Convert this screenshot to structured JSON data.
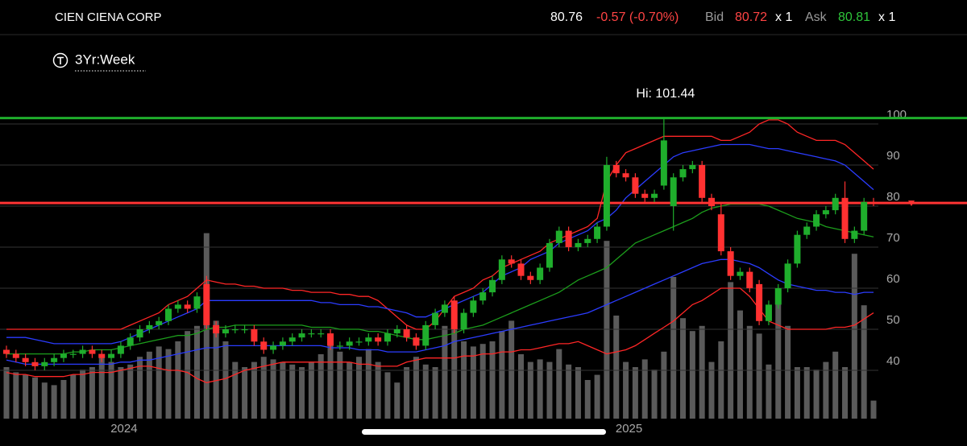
{
  "header": {
    "symbol": "CIEN CIENA CORP",
    "last": 80.76,
    "change": "-0.57 (-0.70%)",
    "bid_label": "Bid",
    "bid": 80.72,
    "bid_size": "x 1",
    "ask_label": "Ask",
    "ask": 80.81,
    "ask_size": "x 1",
    "range": "3Yr:Week"
  },
  "chart_data": {
    "type": "candlestick",
    "annotation": "Hi: 101.44",
    "categories": [
      null,
      null,
      null,
      null,
      null,
      null,
      null,
      null,
      null,
      null,
      null,
      null,
      "2024",
      null,
      null,
      null,
      null,
      null,
      null,
      null,
      null,
      null,
      null,
      null,
      null,
      null,
      null,
      null,
      null,
      null,
      null,
      null,
      null,
      null,
      null,
      null,
      null,
      null,
      null,
      null,
      null,
      null,
      null,
      null,
      null,
      null,
      null,
      null,
      null,
      null,
      null,
      null,
      null,
      null,
      null,
      null,
      null,
      null,
      null,
      null,
      null,
      null,
      null,
      null,
      null,
      "2025",
      null,
      null,
      null,
      null,
      null,
      null,
      null,
      null,
      null,
      null,
      null,
      null,
      null,
      null,
      null,
      null,
      null,
      null,
      null,
      null,
      null,
      null,
      null,
      null,
      null,
      null
    ],
    "open": [
      45,
      44,
      43,
      42,
      41,
      42,
      43,
      44,
      44,
      45,
      44,
      43,
      44,
      46,
      48,
      50,
      51,
      52,
      55,
      56,
      55,
      61,
      51,
      49,
      50,
      50,
      50,
      47,
      45,
      46,
      47,
      48,
      49,
      49,
      49,
      46,
      46,
      47,
      47,
      48,
      47,
      49,
      50,
      48,
      46,
      51,
      54,
      57,
      50,
      54,
      57,
      59,
      62,
      67,
      66,
      63,
      62,
      65,
      71,
      74,
      70,
      71,
      72,
      75,
      90,
      88,
      87,
      83,
      82,
      85,
      80,
      87,
      89,
      90,
      82,
      78,
      69,
      63,
      64,
      61,
      52,
      56,
      60,
      66,
      73,
      75,
      78,
      79,
      82,
      72,
      74,
      81
    ],
    "high": [
      46,
      45,
      44,
      43,
      43,
      44,
      45,
      45,
      46,
      46,
      45,
      45,
      47,
      49,
      51,
      52,
      53,
      56,
      57,
      57,
      59,
      63,
      52,
      51,
      51,
      51,
      51,
      48,
      47,
      48,
      49,
      50,
      50,
      50,
      50,
      47,
      48,
      48,
      49,
      49,
      50,
      51,
      51,
      49,
      52,
      55,
      57,
      58,
      55,
      58,
      60,
      63,
      68,
      68,
      67,
      64,
      66,
      72,
      75,
      75,
      72,
      73,
      76,
      92,
      91,
      89,
      88,
      84,
      84,
      101.44,
      88,
      90,
      91,
      91,
      83,
      81,
      70,
      65,
      65,
      62,
      57,
      61,
      67,
      74,
      76,
      79,
      80,
      83,
      86,
      75,
      82,
      82
    ],
    "low": [
      43,
      42,
      41,
      40,
      40,
      41,
      42,
      43,
      43,
      43,
      42,
      42,
      43,
      45,
      47,
      49,
      50,
      51,
      54,
      54,
      54,
      50,
      48,
      48,
      49,
      49,
      46,
      44,
      44,
      45,
      46,
      47,
      48,
      48,
      45,
      45,
      45,
      46,
      46,
      46,
      46,
      48,
      47,
      45,
      45,
      50,
      53,
      49,
      49,
      53,
      56,
      58,
      61,
      65,
      62,
      61,
      61,
      64,
      70,
      69,
      69,
      70,
      71,
      74,
      87,
      86,
      82,
      81,
      81,
      84,
      74,
      86,
      88,
      81,
      79,
      68,
      62,
      62,
      59,
      51,
      51,
      55,
      59,
      65,
      72,
      74,
      77,
      78,
      71,
      71,
      73,
      80
    ],
    "close": [
      44,
      43,
      42,
      41,
      42,
      43,
      44,
      44,
      45,
      44,
      43,
      44,
      46,
      48,
      50,
      51,
      52,
      55,
      56,
      55,
      58,
      51,
      49,
      50,
      50,
      50,
      47,
      45,
      46,
      47,
      48,
      49,
      49,
      49,
      46,
      46,
      47,
      47,
      48,
      47,
      49,
      50,
      48,
      46,
      51,
      54,
      56,
      50,
      54,
      57,
      59,
      62,
      67,
      66,
      63,
      62,
      65,
      71,
      74,
      70,
      71,
      72,
      75,
      90,
      88,
      87,
      83,
      82,
      83,
      96,
      87,
      89,
      90,
      82,
      80,
      69,
      63,
      64,
      60,
      52,
      56,
      60,
      66,
      73,
      75,
      78,
      79,
      82,
      72,
      74,
      81,
      80.76
    ],
    "up_color": "#1fae2c",
    "down_color": "#ff3131",
    "volume": [
      20,
      18,
      17,
      16,
      14,
      13,
      15,
      17,
      19,
      20,
      25,
      22,
      20,
      21,
      24,
      26,
      28,
      27,
      30,
      34,
      36,
      72,
      38,
      30,
      22,
      20,
      22,
      24,
      23,
      22,
      21,
      20,
      22,
      25,
      30,
      26,
      22,
      24,
      27,
      22,
      18,
      14,
      20,
      24,
      21,
      20,
      36,
      40,
      30,
      28,
      29,
      30,
      34,
      38,
      25,
      22,
      23,
      22,
      27,
      21,
      20,
      15,
      17,
      69,
      40,
      22,
      20,
      23,
      19,
      26,
      55,
      39,
      34,
      36,
      22,
      30,
      53,
      42,
      36,
      33,
      21,
      45,
      36,
      20,
      20,
      19,
      22,
      26,
      20,
      64,
      44,
      7
    ],
    "volume_color": "#5a5a5a",
    "bands": [
      {
        "color": "#ff2626",
        "values": [
          50,
          50,
          50,
          50,
          50,
          50,
          50,
          50,
          50,
          50,
          50,
          50,
          50,
          51,
          52,
          53,
          54,
          56,
          57,
          58,
          60,
          62,
          61.5,
          61,
          61,
          60.5,
          60.5,
          60,
          60,
          60,
          59.5,
          59.5,
          59,
          59,
          59,
          58.5,
          58.5,
          58,
          58,
          57,
          55,
          53,
          51,
          50,
          50,
          52,
          55,
          58,
          59,
          60,
          62,
          63,
          65,
          66,
          67,
          68,
          69,
          71,
          72,
          73,
          74,
          75,
          77,
          86,
          90,
          93,
          94,
          95,
          96,
          97,
          97,
          97,
          97,
          97,
          97,
          96,
          96,
          97,
          98,
          100,
          101,
          101,
          100,
          98,
          97,
          96,
          96,
          96,
          95,
          93,
          91,
          89
        ]
      },
      {
        "color": "#2b3cff",
        "values": [
          48,
          48,
          48,
          47.5,
          47,
          46.5,
          46.5,
          46.5,
          46.5,
          46.5,
          46.5,
          46.5,
          47,
          48,
          49,
          50,
          51,
          52,
          53,
          54,
          55,
          57,
          57,
          57,
          57,
          57,
          57,
          57,
          57,
          57,
          57,
          57,
          57,
          56.5,
          56.5,
          56,
          56,
          56,
          55.5,
          55.5,
          55,
          54.5,
          54,
          53,
          53,
          54,
          55,
          56,
          57,
          58,
          59,
          61,
          63,
          64,
          65,
          67,
          68,
          69,
          71,
          72,
          73,
          74,
          76,
          77,
          79,
          82,
          84,
          86,
          88,
          90,
          92,
          93,
          93.5,
          94,
          94.5,
          95,
          95,
          95,
          95,
          94.5,
          94,
          94,
          93.5,
          93,
          92.5,
          92,
          91.5,
          91,
          90,
          88,
          86,
          84
        ]
      },
      {
        "color": "#1c9e1c",
        "values": [
          44,
          44,
          44,
          44,
          44,
          44,
          44,
          44.5,
          44.5,
          45,
          45,
          45,
          45.5,
          46,
          46.5,
          47,
          47.5,
          48,
          48.5,
          48.5,
          49,
          50,
          50.5,
          50.5,
          51,
          51,
          51,
          51,
          51,
          51,
          51,
          51,
          50.5,
          50.5,
          50.5,
          50,
          50,
          50,
          49.5,
          49.5,
          49,
          48.5,
          48,
          47.5,
          47.5,
          48,
          48.5,
          49,
          50,
          50.5,
          51,
          52,
          53,
          54,
          55,
          56,
          57,
          58,
          59,
          60.5,
          62,
          63,
          64,
          65,
          67,
          69,
          71,
          72,
          73,
          74,
          75,
          76,
          77,
          78.5,
          79.5,
          80,
          80.5,
          80.5,
          80.5,
          80.5,
          80,
          79,
          78,
          77,
          76.5,
          76,
          75,
          74.5,
          74,
          73.5,
          73,
          72.5
        ]
      },
      {
        "color": "#2b3cff",
        "values": [
          42.5,
          42,
          41.5,
          41.5,
          41.5,
          41.5,
          41.5,
          41.5,
          41.5,
          41.5,
          41.5,
          41.5,
          42,
          42,
          42.5,
          42.5,
          43,
          43.5,
          44,
          44.5,
          45,
          45.5,
          45.5,
          46,
          46,
          46,
          46,
          46,
          46,
          46,
          46,
          46,
          46,
          46,
          45.5,
          45.5,
          45.5,
          45,
          45,
          45,
          44.5,
          44.5,
          44.5,
          44.5,
          45,
          45.5,
          46,
          47,
          47.5,
          48,
          48.5,
          49,
          49.5,
          50,
          50.5,
          51,
          51.5,
          52,
          52.5,
          53,
          53.5,
          54,
          55,
          56,
          57,
          58,
          59,
          60,
          61,
          62,
          63,
          64,
          65,
          66,
          66.5,
          67,
          67,
          66.5,
          66,
          65,
          63.5,
          62,
          61,
          60.5,
          60,
          59.5,
          59.5,
          59,
          59,
          58.5,
          59,
          59
        ]
      },
      {
        "color": "#ff2626",
        "values": [
          39.5,
          39,
          39,
          38.5,
          38.5,
          38.5,
          38.5,
          39,
          39,
          39.5,
          39.5,
          39.5,
          40,
          40.5,
          41,
          41,
          40.5,
          40,
          40,
          39.5,
          38,
          37,
          37.5,
          38,
          39,
          40,
          40.5,
          41,
          41.5,
          42,
          42,
          42,
          42,
          42,
          42,
          42,
          42,
          41.5,
          41.5,
          41,
          41,
          41,
          42,
          42.5,
          43,
          43,
          43,
          43,
          43.5,
          43.5,
          44,
          44,
          44.5,
          44.5,
          45,
          45,
          45.5,
          46,
          46.5,
          46.5,
          47,
          46,
          45,
          44,
          44.5,
          45,
          46,
          47.5,
          49,
          50.5,
          52,
          54,
          56,
          57,
          58.5,
          60,
          60,
          60,
          58,
          55,
          52,
          51,
          50,
          50,
          50,
          50,
          50,
          50.5,
          50.5,
          51,
          52.5,
          54
        ]
      }
    ],
    "high_line_color": "#1fae2c",
    "last_line_color": "#ff3434",
    "ylim": [
      28,
      112
    ],
    "yticks": [
      40,
      50,
      60,
      70,
      80,
      90,
      100
    ],
    "y2lim": [
      0,
      100
    ],
    "grid": true
  }
}
